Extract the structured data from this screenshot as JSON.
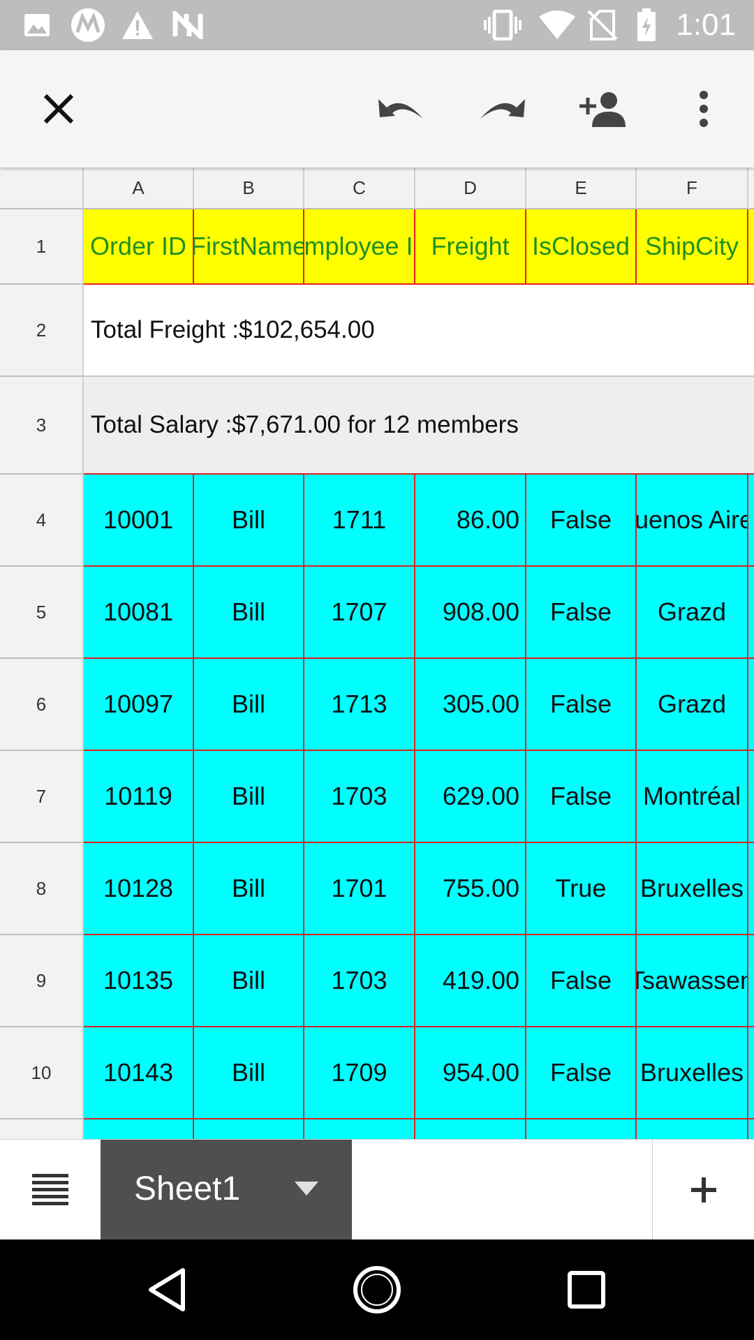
{
  "status_bar": {
    "time": "1:01",
    "icons": [
      "image-icon",
      "motorola-icon",
      "warning-icon",
      "nfc-icon",
      "vibrate-icon",
      "wifi-icon",
      "no-sim-icon",
      "battery-charging-icon"
    ]
  },
  "toolbar": {
    "icons": [
      "close-icon",
      "undo-icon",
      "redo-icon",
      "add-person-icon",
      "more-vert-icon"
    ]
  },
  "columns": [
    "A",
    "B",
    "C",
    "D",
    "E",
    "F"
  ],
  "rows": [
    "1",
    "2",
    "3",
    "4",
    "5",
    "6",
    "7",
    "8",
    "9",
    "10"
  ],
  "header_row": [
    "Order ID",
    "FirstName",
    "Employee ID",
    "Freight",
    "IsClosed",
    "ShipCity"
  ],
  "total_freight": "Total Freight :$102,654.00",
  "total_salary": "Total Salary :$7,671.00 for 12 members",
  "data_rows": [
    [
      "10001",
      "Bill",
      "1711",
      "86.00",
      "False",
      "Buenos Aires"
    ],
    [
      "10081",
      "Bill",
      "1707",
      "908.00",
      "False",
      "Grazd"
    ],
    [
      "10097",
      "Bill",
      "1713",
      "305.00",
      "False",
      "Grazd"
    ],
    [
      "10119",
      "Bill",
      "1703",
      "629.00",
      "False",
      "Montréal"
    ],
    [
      "10128",
      "Bill",
      "1701",
      "755.00",
      "True",
      "Bruxelles"
    ],
    [
      "10135",
      "Bill",
      "1703",
      "419.00",
      "False",
      "Tsawassen"
    ],
    [
      "10143",
      "Bill",
      "1709",
      "954.00",
      "False",
      "Bruxelles"
    ]
  ],
  "sheet_tab": {
    "label": "Sheet1"
  },
  "colors": {
    "header_bg": "#ffff00",
    "header_text": "#1f8f1f",
    "data_bg": "#00ffff",
    "cell_border": "#e02020",
    "tab_bg": "#4f4f4f"
  }
}
